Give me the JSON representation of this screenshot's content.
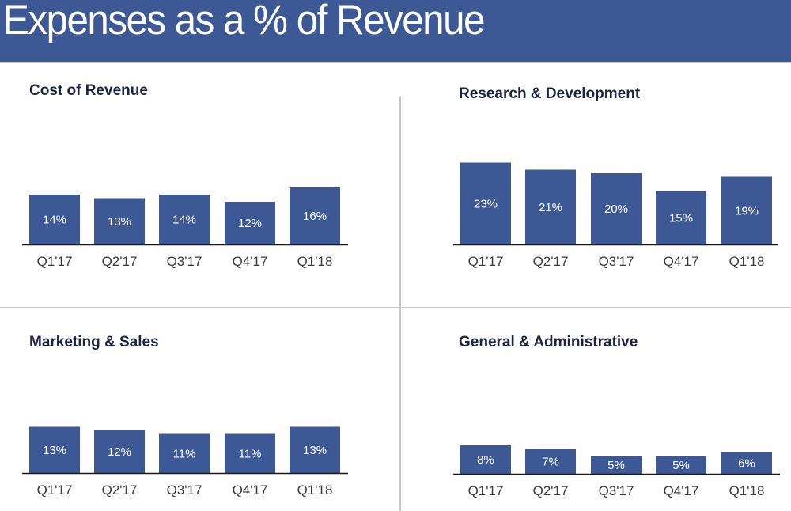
{
  "header": {
    "title": "Expenses as a % of Revenue"
  },
  "colors": {
    "header": "#3c5996",
    "bar": "#3c5996",
    "axis": "#1a1a1a",
    "title_text": "#1b2440",
    "divider": "#c8c8c8"
  },
  "chart_data": [
    {
      "type": "bar",
      "title": "Cost of Revenue",
      "categories": [
        "Q1'17",
        "Q2'17",
        "Q3'17",
        "Q4'17",
        "Q1'18"
      ],
      "values": [
        14,
        13,
        14,
        12,
        16
      ],
      "value_labels": [
        "14%",
        "13%",
        "14%",
        "12%",
        "16%"
      ],
      "xlabel": "",
      "ylabel": "",
      "unit": "%",
      "grid": false,
      "legend": "none"
    },
    {
      "type": "bar",
      "title": "Research & Development",
      "categories": [
        "Q1'17",
        "Q2'17",
        "Q3'17",
        "Q4'17",
        "Q1'18"
      ],
      "values": [
        23,
        21,
        20,
        15,
        19
      ],
      "value_labels": [
        "23%",
        "21%",
        "20%",
        "15%",
        "19%"
      ],
      "xlabel": "",
      "ylabel": "",
      "unit": "%",
      "grid": false,
      "legend": "none"
    },
    {
      "type": "bar",
      "title": "Marketing & Sales",
      "categories": [
        "Q1'17",
        "Q2'17",
        "Q3'17",
        "Q4'17",
        "Q1'18"
      ],
      "values": [
        13,
        12,
        11,
        11,
        13
      ],
      "value_labels": [
        "13%",
        "12%",
        "11%",
        "11%",
        "13%"
      ],
      "xlabel": "",
      "ylabel": "",
      "unit": "%",
      "grid": false,
      "legend": "none"
    },
    {
      "type": "bar",
      "title": "General & Administrative",
      "categories": [
        "Q1'17",
        "Q2'17",
        "Q3'17",
        "Q4'17",
        "Q1'18"
      ],
      "values": [
        8,
        7,
        5,
        5,
        6
      ],
      "value_labels": [
        "8%",
        "7%",
        "5%",
        "5%",
        "6%"
      ],
      "xlabel": "",
      "ylabel": "",
      "unit": "%",
      "grid": false,
      "legend": "none"
    }
  ]
}
